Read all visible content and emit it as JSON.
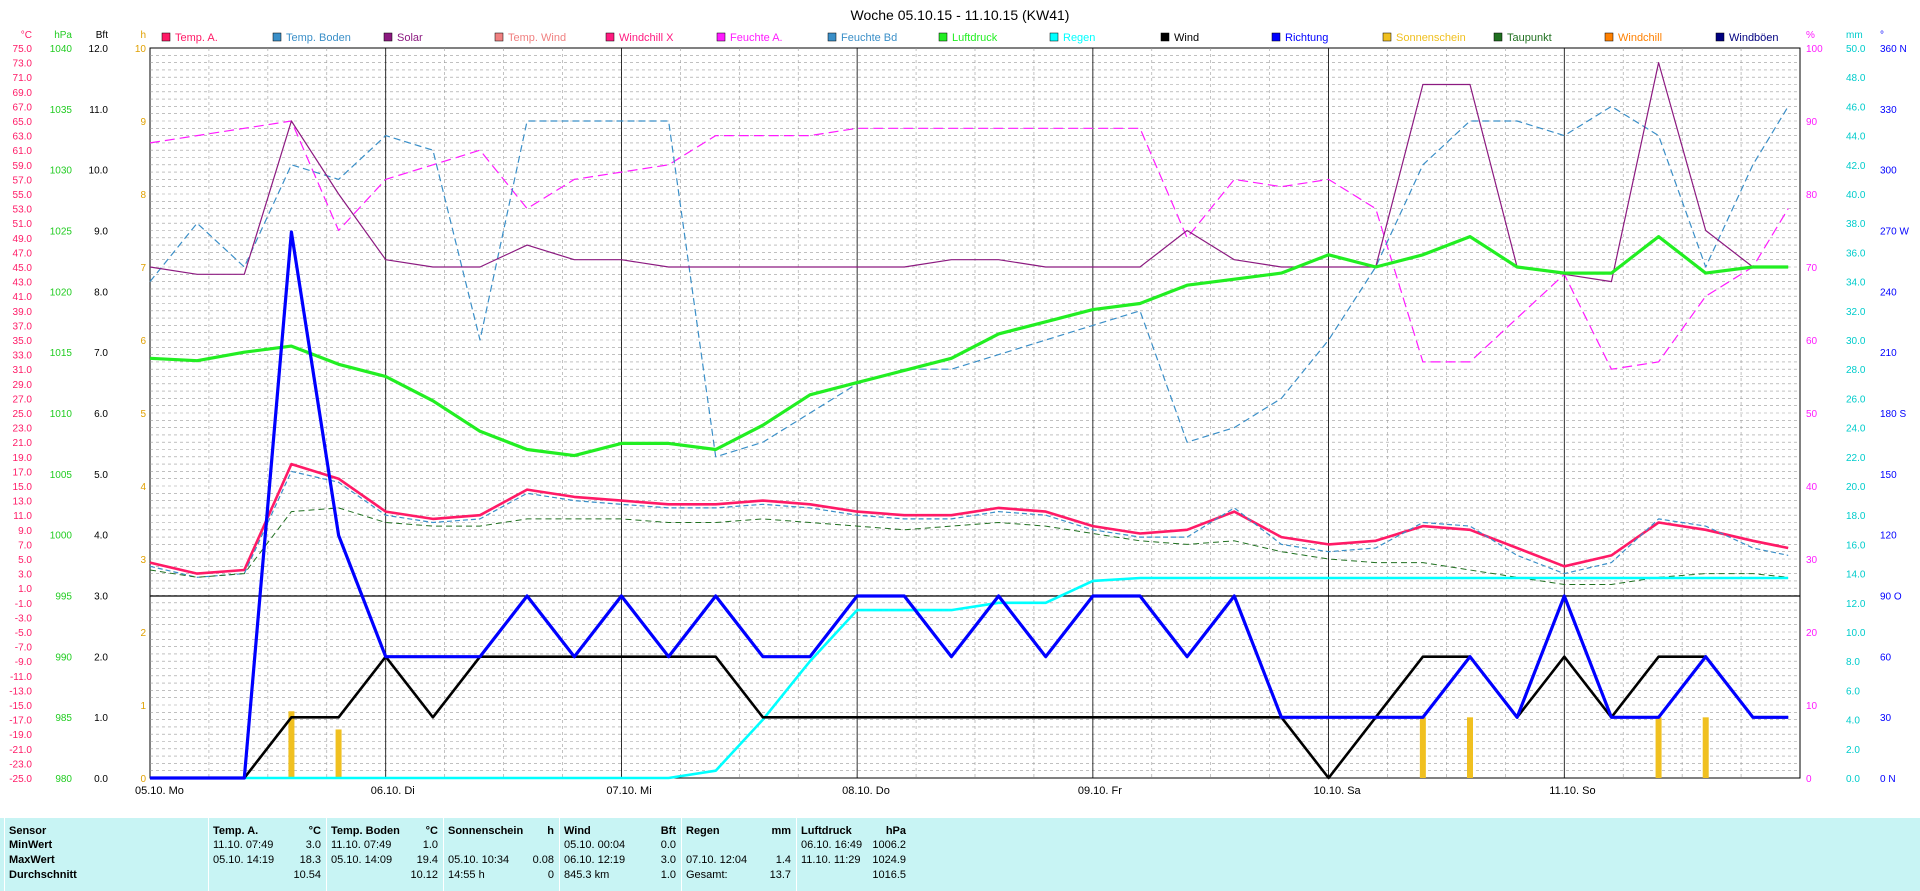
{
  "title": "Woche 05.10.15 - 11.10.15 (KW41)",
  "legend": [
    {
      "label": "Temp. A.",
      "color": "#ff1a66"
    },
    {
      "label": "Temp. Boden",
      "color": "#3a8fc8"
    },
    {
      "label": "Solar",
      "color": "#8c1a80"
    },
    {
      "label": "Temp. Wind",
      "color": "#f08080"
    },
    {
      "label": "Windchill X",
      "color": "#ff1a80"
    },
    {
      "label": "Feuchte A.",
      "color": "#ff1aff"
    },
    {
      "label": "Feuchte Bd",
      "color": "#3a8fc8"
    },
    {
      "label": "Luftdruck",
      "color": "#22ee22"
    },
    {
      "label": "Regen",
      "color": "#00ffff"
    },
    {
      "label": "Wind",
      "color": "#000000"
    },
    {
      "label": "Richtung",
      "color": "#0000ff"
    },
    {
      "label": "Sonnenschein",
      "color": "#f0c020"
    },
    {
      "label": "Taupunkt",
      "color": "#207020"
    },
    {
      "label": "Windchill",
      "color": "#ff8000"
    },
    {
      "label": "Windböen",
      "color": "#000080"
    }
  ],
  "axes": {
    "temp": {
      "unit": "°C",
      "color": "#ff1a66",
      "ticks": [
        "75.0",
        "73.0",
        "71.0",
        "69.0",
        "67.0",
        "65.0",
        "63.0",
        "61.0",
        "59.0",
        "57.0",
        "55.0",
        "53.0",
        "51.0",
        "49.0",
        "47.0",
        "45.0",
        "43.0",
        "41.0",
        "39.0",
        "37.0",
        "35.0",
        "33.0",
        "31.0",
        "29.0",
        "27.0",
        "25.0",
        "23.0",
        "21.0",
        "19.0",
        "17.0",
        "15.0",
        "13.0",
        "11.0",
        "9.0",
        "7.0",
        "5.0",
        "3.0",
        "1.0",
        "-1.0",
        "-3.0",
        "-5.0",
        "-7.0",
        "-9.0",
        "-11.0",
        "-13.0",
        "-15.0",
        "-17.0",
        "-19.0",
        "-21.0",
        "-23.0",
        "-25.0"
      ]
    },
    "pressure": {
      "unit": "hPa",
      "color": "#22cc22",
      "ticks": [
        "1040",
        "1035",
        "1030",
        "1025",
        "1020",
        "1015",
        "1010",
        "1005",
        "1000",
        "995",
        "990",
        "985",
        "980"
      ]
    },
    "bft": {
      "unit": "Bft",
      "color": "#000000",
      "ticks": [
        "12.0",
        "11.0",
        "10.0",
        "9.0",
        "8.0",
        "7.0",
        "6.0",
        "5.0",
        "4.0",
        "3.0",
        "2.0",
        "1.0",
        "0.0"
      ]
    },
    "hours": {
      "unit": "h",
      "color": "#e0a000",
      "ticks": [
        "10",
        "9",
        "8",
        "7",
        "6",
        "5",
        "4",
        "3",
        "2",
        "1",
        "0"
      ]
    },
    "humidity": {
      "unit": "%",
      "color": "#ff1aff",
      "ticks": [
        "100",
        "90",
        "80",
        "70",
        "60",
        "50",
        "40",
        "30",
        "20",
        "10",
        "0"
      ]
    },
    "rain": {
      "unit": "mm",
      "color": "#00cccc",
      "ticks": [
        "50.0",
        "48.0",
        "46.0",
        "44.0",
        "42.0",
        "40.0",
        "38.0",
        "36.0",
        "34.0",
        "32.0",
        "30.0",
        "28.0",
        "26.0",
        "24.0",
        "22.0",
        "20.0",
        "18.0",
        "16.0",
        "14.0",
        "12.0",
        "10.0",
        "8.0",
        "6.0",
        "4.0",
        "2.0",
        "0.0"
      ]
    },
    "direction": {
      "unit": "°",
      "color": "#0000ff",
      "ticks": [
        "360 N",
        "330",
        "300",
        "270 W",
        "240",
        "210",
        "180 S",
        "150",
        "120",
        "90 O",
        "60",
        "30",
        "0 N"
      ]
    }
  },
  "x_labels": [
    "05.10. Mo",
    "06.10. Di",
    "07.10. Mi",
    "08.10. Do",
    "09.10. Fr",
    "10.10. Sa",
    "11.10. So"
  ],
  "chart_data": {
    "type": "line",
    "title": "Woche 05.10.15 - 11.10.15 (KW41)",
    "x_unit": "Tage (05.10.15 - 11.10.15)",
    "x": [
      0,
      0.2,
      0.4,
      0.6,
      0.8,
      1.0,
      1.2,
      1.4,
      1.6,
      1.8,
      2.0,
      2.2,
      2.4,
      2.6,
      2.8,
      3.0,
      3.2,
      3.4,
      3.6,
      3.8,
      4.0,
      4.2,
      4.4,
      4.6,
      4.8,
      5.0,
      5.2,
      5.4,
      5.6,
      5.8,
      6.0,
      6.2,
      6.4,
      6.6,
      6.8,
      6.95
    ],
    "series": [
      {
        "name": "Temp. A.",
        "axis": "temp",
        "values": [
          4.5,
          3.0,
          3.5,
          18.0,
          16.0,
          11.5,
          10.5,
          11.0,
          14.5,
          13.5,
          13.0,
          12.5,
          12.5,
          13.0,
          12.5,
          11.5,
          11.0,
          11.0,
          12.0,
          11.5,
          9.5,
          8.5,
          9.0,
          11.5,
          8.0,
          7.0,
          7.5,
          9.5,
          9.0,
          6.5,
          4.0,
          5.5,
          10.0,
          9.0,
          7.5,
          6.5
        ]
      },
      {
        "name": "Temp. Boden",
        "axis": "temp",
        "values": [
          4.0,
          2.5,
          3.0,
          17.0,
          15.5,
          11.0,
          10.0,
          10.5,
          14.0,
          13.0,
          12.5,
          12.0,
          12.0,
          12.5,
          12.0,
          11.0,
          10.5,
          10.5,
          11.5,
          11.0,
          9.0,
          8.0,
          8.0,
          12.0,
          7.0,
          6.0,
          6.5,
          10.0,
          9.5,
          5.5,
          3.0,
          4.5,
          10.5,
          9.5,
          6.5,
          5.5
        ]
      },
      {
        "name": "Taupunkt",
        "axis": "temp",
        "values": [
          3.5,
          2.5,
          3.0,
          11.5,
          12.0,
          10.0,
          9.5,
          9.5,
          10.5,
          10.5,
          10.5,
          10.0,
          10.0,
          10.5,
          10.0,
          9.5,
          9.0,
          9.5,
          10.0,
          9.5,
          8.5,
          7.5,
          7.0,
          7.5,
          6.0,
          5.0,
          4.5,
          4.5,
          3.5,
          2.5,
          1.5,
          1.5,
          2.5,
          3.0,
          3.0,
          2.5
        ]
      },
      {
        "name": "Feuchte A.",
        "axis": "humidity",
        "values": [
          87,
          88,
          89,
          90,
          75,
          82,
          84,
          86,
          78,
          82,
          83,
          84,
          88,
          88,
          88,
          89,
          89,
          89,
          89,
          89,
          89,
          89,
          74,
          82,
          81,
          82,
          78,
          57,
          57,
          63,
          69,
          56,
          57,
          66,
          70,
          78
        ]
      },
      {
        "name": "Feuchte Bd",
        "axis": "rain",
        "values": [
          34,
          38,
          35,
          42,
          41,
          44,
          43,
          30,
          45,
          45,
          45,
          45,
          22,
          23,
          25,
          27,
          28,
          28,
          29,
          30,
          31,
          32,
          23,
          24,
          26,
          30,
          35,
          42,
          45,
          45,
          44,
          46,
          44,
          35,
          42,
          46
        ]
      },
      {
        "name": "Solar",
        "axis": "hours",
        "values": [
          7.0,
          6.9,
          6.9,
          9.0,
          8.0,
          7.1,
          7.0,
          7.0,
          7.3,
          7.1,
          7.1,
          7.0,
          7.0,
          7.0,
          7.0,
          7.0,
          7.0,
          7.1,
          7.1,
          7.0,
          7.0,
          7.0,
          7.5,
          7.1,
          7.0,
          7.0,
          7.0,
          9.5,
          9.5,
          7.0,
          6.9,
          6.8,
          9.8,
          7.5,
          7.0,
          7.0
        ]
      },
      {
        "name": "Luftdruck",
        "axis": "pressure",
        "values": [
          1014.5,
          1014.3,
          1015.0,
          1015.5,
          1014.0,
          1013.0,
          1011.0,
          1008.5,
          1007.0,
          1006.5,
          1007.5,
          1007.5,
          1007.0,
          1009.0,
          1011.5,
          1012.5,
          1013.5,
          1014.5,
          1016.5,
          1017.5,
          1018.5,
          1019.0,
          1020.5,
          1021.0,
          1021.5,
          1023.0,
          1022.0,
          1023.0,
          1024.5,
          1022.0,
          1021.5,
          1021.5,
          1024.5,
          1021.5,
          1022.0,
          1022.0
        ]
      },
      {
        "name": "Regen",
        "axis": "rain",
        "values": [
          0,
          0,
          0,
          0,
          0,
          0,
          0,
          0,
          0,
          0,
          0,
          0,
          0.5,
          4.0,
          8.0,
          11.5,
          11.5,
          11.5,
          12.0,
          12.0,
          13.5,
          13.7,
          13.7,
          13.7,
          13.7,
          13.7,
          13.7,
          13.7,
          13.7,
          13.7,
          13.7,
          13.7,
          13.7,
          13.7,
          13.7,
          13.7
        ]
      },
      {
        "name": "Wind",
        "axis": "bft",
        "values": [
          0,
          0,
          0,
          1,
          1,
          2,
          1,
          2,
          2,
          2,
          2,
          2,
          2,
          1,
          1,
          1,
          1,
          1,
          1,
          1,
          1,
          1,
          1,
          1,
          1,
          0,
          1,
          2,
          2,
          1,
          2,
          1,
          2,
          2,
          1,
          1
        ]
      },
      {
        "name": "Richtung",
        "axis": "direction",
        "values": [
          0,
          0,
          0,
          270,
          120,
          60,
          60,
          60,
          90,
          60,
          90,
          60,
          90,
          60,
          60,
          90,
          90,
          60,
          90,
          60,
          90,
          90,
          60,
          90,
          30,
          30,
          30,
          30,
          60,
          30,
          90,
          30,
          30,
          60,
          30,
          30
        ]
      }
    ],
    "sonnenschein_h": [
      0,
      0,
      0,
      1.1,
      0.8,
      0,
      0,
      0,
      0,
      0,
      0,
      0,
      0,
      0,
      0,
      0,
      0,
      0,
      0,
      0,
      0,
      0,
      0,
      0,
      0,
      0,
      0,
      1.0,
      1.0,
      0,
      0,
      0,
      1.0,
      1.0,
      0,
      0
    ],
    "ylim": {
      "temp": [
        -25,
        75
      ],
      "pressure": [
        980,
        1040
      ],
      "bft": [
        0,
        12
      ],
      "hours": [
        0,
        10
      ],
      "humidity": [
        0,
        100
      ],
      "rain": [
        0,
        50
      ],
      "direction": [
        0,
        360
      ]
    },
    "grid": true,
    "legend_position": "top"
  },
  "stats": {
    "columns": [
      {
        "header": "Sensor",
        "unit": "",
        "rows": [
          "MinWert",
          "MaxWert",
          "Durchschnitt"
        ],
        "values": [
          "",
          "",
          ""
        ]
      },
      {
        "header": "Temp. A.",
        "unit": "°C",
        "rows": [
          "11.10.  07:49",
          "05.10.  14:19",
          ""
        ],
        "values": [
          "3.0",
          "18.3",
          "10.54"
        ]
      },
      {
        "header": "Temp. Boden",
        "unit": "°C",
        "rows": [
          "11.10.  07:49",
          "05.10.  14:09",
          ""
        ],
        "values": [
          "1.0",
          "19.4",
          "10.12"
        ]
      },
      {
        "header": "Sonnenschein",
        "unit": "h",
        "rows": [
          "",
          "05.10.  10:34",
          "14:55 h"
        ],
        "values": [
          "",
          "0.08",
          "0"
        ]
      },
      {
        "header": "Wind",
        "unit": "Bft",
        "rows": [
          "05.10.  00:04",
          "06.10.  12:19",
          "845.3 km"
        ],
        "values": [
          "0.0",
          "3.0",
          "1.0"
        ]
      },
      {
        "header": "Regen",
        "unit": "mm",
        "rows": [
          "",
          "07.10.  12:04",
          "Gesamt:"
        ],
        "values": [
          "",
          "1.4",
          "13.7"
        ]
      },
      {
        "header": "Luftdruck",
        "unit": "hPa",
        "rows": [
          "06.10.  16:49",
          "11.10.  11:29",
          ""
        ],
        "values": [
          "1006.2",
          "1024.9",
          "1016.5"
        ]
      }
    ]
  }
}
